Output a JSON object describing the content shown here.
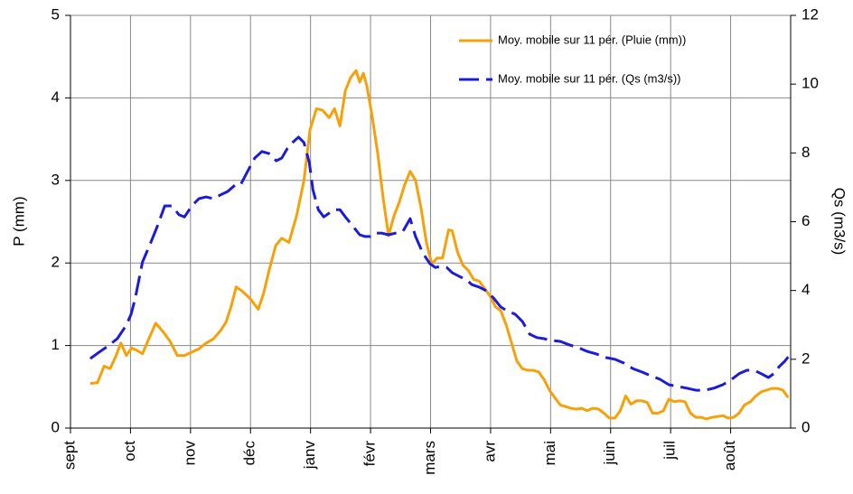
{
  "chart_data": {
    "type": "line",
    "ylabel": "P (mm)",
    "y2label": "Qs (m3/s)",
    "xlim": [
      0,
      12
    ],
    "xticks": [
      {
        "value": 0,
        "label": "sept"
      },
      {
        "value": 1,
        "label": "oct"
      },
      {
        "value": 2,
        "label": "nov"
      },
      {
        "value": 3,
        "label": "déc"
      },
      {
        "value": 4,
        "label": "janv"
      },
      {
        "value": 5,
        "label": "févr"
      },
      {
        "value": 6,
        "label": "mars"
      },
      {
        "value": 7,
        "label": "avr"
      },
      {
        "value": 8,
        "label": "mai"
      },
      {
        "value": 9,
        "label": "juin"
      },
      {
        "value": 10,
        "label": "juil"
      },
      {
        "value": 11,
        "label": "août"
      }
    ],
    "ylim": [
      0,
      5
    ],
    "yticks": [
      0,
      1,
      2,
      3,
      4,
      5
    ],
    "y2lim": [
      0,
      12
    ],
    "y2ticks": [
      0,
      2,
      4,
      6,
      8,
      10,
      12
    ],
    "grid": true,
    "legend": "upper right",
    "series": [
      {
        "name": "Moy. mobile sur 11 pér. (Pluie (mm))",
        "color": "#f7a10a",
        "dash": false,
        "x": [
          0.33,
          0.45,
          0.56,
          0.66,
          0.75,
          0.84,
          0.93,
          1.02,
          1.11,
          1.2,
          1.31,
          1.42,
          1.54,
          1.66,
          1.78,
          1.9,
          2.02,
          2.14,
          2.26,
          2.38,
          2.5,
          2.59,
          2.68,
          2.76,
          2.86,
          2.98,
          3.13,
          3.22,
          3.31,
          3.42,
          3.52,
          3.64,
          3.77,
          3.89,
          3.99,
          4.1,
          4.2,
          4.31,
          4.4,
          4.49,
          4.58,
          4.67,
          4.76,
          4.82,
          4.88,
          4.94,
          5.03,
          5.12,
          5.21,
          5.3,
          5.39,
          5.48,
          5.57,
          5.66,
          5.75,
          5.84,
          5.93,
          6.02,
          6.11,
          6.2,
          6.3,
          6.36,
          6.45,
          6.54,
          6.63,
          6.72,
          6.81,
          6.9,
          6.99,
          7.08,
          7.17,
          7.26,
          7.35,
          7.44,
          7.53,
          7.62,
          7.71,
          7.8,
          7.89,
          7.98,
          8.07,
          8.16,
          8.25,
          8.34,
          8.43,
          8.52,
          8.61,
          8.7,
          8.8,
          8.89,
          8.98,
          9.07,
          9.16,
          9.25,
          9.34,
          9.43,
          9.52,
          9.61,
          9.7,
          9.79,
          9.88,
          9.97,
          10.06,
          10.15,
          10.24,
          10.33,
          10.42,
          10.51,
          10.6,
          10.69,
          10.78,
          10.87,
          10.96,
          11.05,
          11.14,
          11.23,
          11.33,
          11.42,
          11.51,
          11.6,
          11.69,
          11.78,
          11.87,
          11.96
        ],
        "values": [
          0.54,
          0.55,
          0.75,
          0.72,
          0.86,
          1.03,
          0.88,
          0.97,
          0.94,
          0.9,
          1.09,
          1.27,
          1.17,
          1.05,
          0.88,
          0.88,
          0.92,
          0.96,
          1.03,
          1.08,
          1.18,
          1.28,
          1.48,
          1.71,
          1.66,
          1.58,
          1.44,
          1.64,
          1.91,
          2.21,
          2.3,
          2.25,
          2.58,
          3.0,
          3.61,
          3.87,
          3.85,
          3.76,
          3.87,
          3.66,
          4.09,
          4.25,
          4.33,
          4.19,
          4.3,
          4.14,
          3.76,
          3.32,
          2.79,
          2.33,
          2.57,
          2.74,
          2.95,
          3.11,
          3.0,
          2.67,
          2.25,
          1.99,
          2.06,
          2.06,
          2.4,
          2.39,
          2.13,
          1.97,
          1.91,
          1.8,
          1.78,
          1.69,
          1.6,
          1.47,
          1.42,
          1.25,
          1.03,
          0.81,
          0.72,
          0.7,
          0.7,
          0.68,
          0.59,
          0.46,
          0.37,
          0.28,
          0.26,
          0.24,
          0.23,
          0.24,
          0.21,
          0.24,
          0.23,
          0.18,
          0.12,
          0.12,
          0.21,
          0.39,
          0.29,
          0.33,
          0.33,
          0.31,
          0.18,
          0.18,
          0.21,
          0.35,
          0.32,
          0.33,
          0.32,
          0.18,
          0.13,
          0.13,
          0.11,
          0.13,
          0.14,
          0.15,
          0.12,
          0.13,
          0.18,
          0.28,
          0.32,
          0.39,
          0.44,
          0.46,
          0.48,
          0.48,
          0.46,
          0.37
        ]
      },
      {
        "name": "Moy. mobile sur 11 pér. (Qs (m3/s))",
        "color": "#1c1cd8",
        "dash": true,
        "axis": "y2",
        "x": [
          0.33,
          0.48,
          0.63,
          0.78,
          0.93,
          1.01,
          1.08,
          1.2,
          1.33,
          1.45,
          1.57,
          1.69,
          1.81,
          1.9,
          2.02,
          2.14,
          2.26,
          2.38,
          2.5,
          2.62,
          2.74,
          2.83,
          2.95,
          3.07,
          3.19,
          3.31,
          3.43,
          3.52,
          3.61,
          3.7,
          3.8,
          3.89,
          3.98,
          4.04,
          4.13,
          4.22,
          4.31,
          4.4,
          4.49,
          4.58,
          4.7,
          4.82,
          4.91,
          5.0,
          5.09,
          5.18,
          5.3,
          5.42,
          5.54,
          5.66,
          5.75,
          5.87,
          5.99,
          6.08,
          6.17,
          6.27,
          6.36,
          6.48,
          6.6,
          6.69,
          6.81,
          6.93,
          7.05,
          7.17,
          7.29,
          7.41,
          7.53,
          7.65,
          7.77,
          7.89,
          8.01,
          8.16,
          8.31,
          8.46,
          8.61,
          8.77,
          8.92,
          9.07,
          9.22,
          9.37,
          9.52,
          9.67,
          9.82,
          9.97,
          10.12,
          10.27,
          10.42,
          10.57,
          10.72,
          10.87,
          11.02,
          11.14,
          11.27,
          11.39,
          11.51,
          11.63,
          11.72,
          11.81,
          11.9,
          11.96
        ],
        "values": [
          2.02,
          2.21,
          2.39,
          2.6,
          2.99,
          3.31,
          3.78,
          4.83,
          5.36,
          5.88,
          6.46,
          6.46,
          6.2,
          6.14,
          6.46,
          6.67,
          6.72,
          6.67,
          6.78,
          6.88,
          7.06,
          7.06,
          7.46,
          7.85,
          8.04,
          7.98,
          7.77,
          7.85,
          8.12,
          8.3,
          8.46,
          8.3,
          7.72,
          6.93,
          6.35,
          6.14,
          6.25,
          6.35,
          6.35,
          6.14,
          5.88,
          5.62,
          5.57,
          5.57,
          5.67,
          5.67,
          5.62,
          5.67,
          5.72,
          6.09,
          5.57,
          5.09,
          4.78,
          4.67,
          4.7,
          4.67,
          4.52,
          4.41,
          4.31,
          4.17,
          4.1,
          3.99,
          3.78,
          3.52,
          3.39,
          3.31,
          3.1,
          2.73,
          2.63,
          2.6,
          2.55,
          2.52,
          2.42,
          2.34,
          2.23,
          2.15,
          2.05,
          2.0,
          1.89,
          1.73,
          1.63,
          1.52,
          1.42,
          1.26,
          1.21,
          1.16,
          1.1,
          1.1,
          1.16,
          1.26,
          1.42,
          1.58,
          1.68,
          1.68,
          1.58,
          1.47,
          1.58,
          1.79,
          1.94,
          2.07
        ]
      }
    ]
  }
}
